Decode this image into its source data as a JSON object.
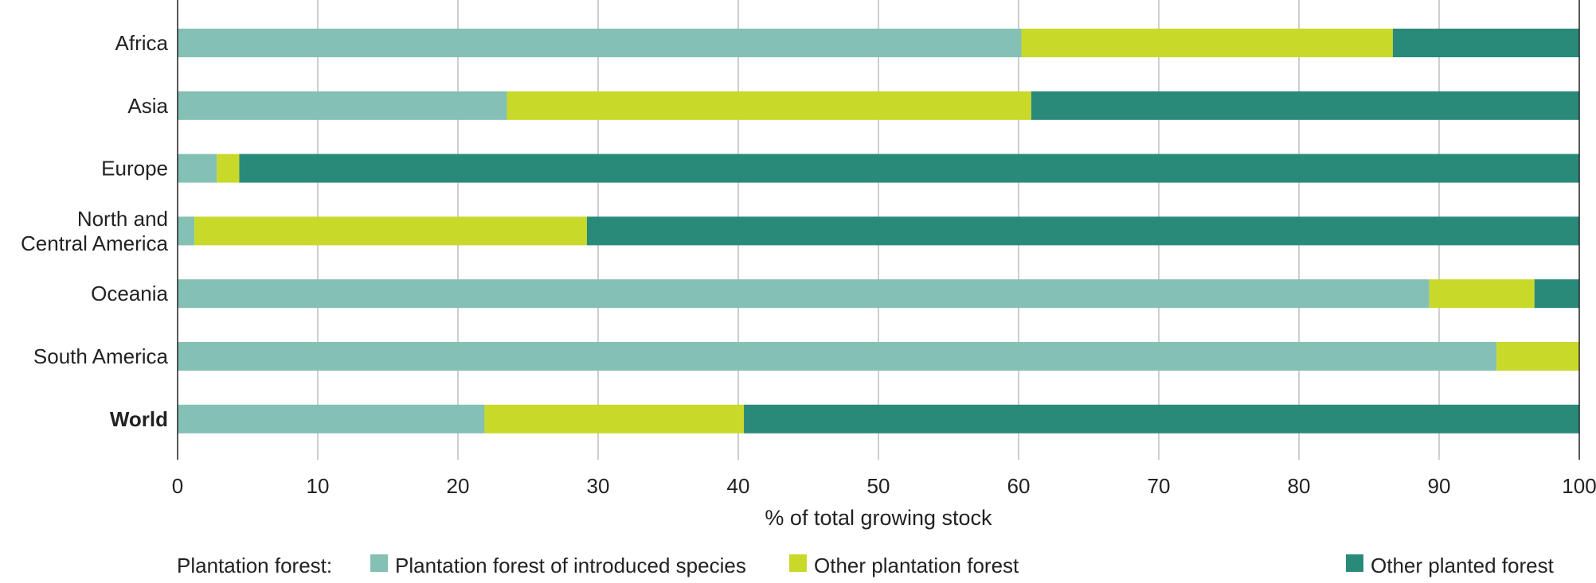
{
  "chart_data": {
    "type": "bar",
    "orientation": "horizontal",
    "stacked": true,
    "title": "",
    "xlabel": "% of total growing stock",
    "ylabel": "",
    "xlim": [
      0,
      100
    ],
    "xticks": [
      0,
      10,
      20,
      30,
      40,
      50,
      60,
      70,
      80,
      90,
      100
    ],
    "grid": true,
    "categories": [
      "Africa",
      "Asia",
      "Europe",
      "North and|Central America",
      "Oceania",
      "South America",
      "World"
    ],
    "series": [
      {
        "name": "Plantation forest of introduced species",
        "color": "#84c0b3",
        "values": [
          60.2,
          23.5,
          2.8,
          1.2,
          89.3,
          94.1,
          21.9
        ]
      },
      {
        "name": "Other plantation forest",
        "color": "#c8d92a",
        "values": [
          26.5,
          37.4,
          1.6,
          28.0,
          7.5,
          5.9,
          18.5
        ]
      },
      {
        "name": "Other planted forest",
        "color": "#2a8a7a",
        "values": [
          13.3,
          39.1,
          95.6,
          70.8,
          3.2,
          0.0,
          59.6
        ]
      }
    ],
    "legend": {
      "group_label": "Plantation forest:",
      "placement": "bottom"
    }
  }
}
